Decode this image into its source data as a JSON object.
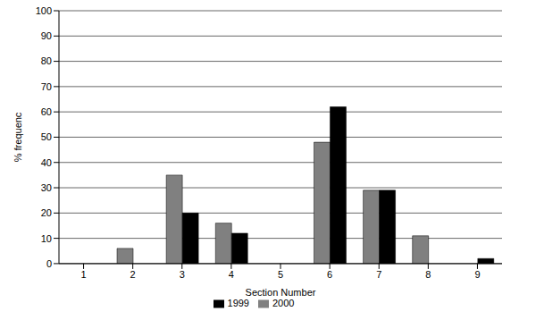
{
  "chart_data": {
    "type": "bar",
    "x_label": "Section Number",
    "y_label": "% frequenc",
    "categories": [
      "1",
      "2",
      "3",
      "4",
      "5",
      "6",
      "7",
      "8",
      "9"
    ],
    "series": [
      {
        "name": "2000",
        "color": "#808080",
        "values": [
          0,
          6,
          35,
          16,
          0,
          48,
          29,
          11,
          0
        ]
      },
      {
        "name": "1999",
        "color": "#000000",
        "values": [
          0,
          0,
          20,
          12,
          0,
          62,
          29,
          0,
          2
        ]
      }
    ],
    "ylim": [
      0,
      100
    ],
    "yticks": [
      0,
      10,
      20,
      30,
      40,
      50,
      60,
      70,
      80,
      90,
      100
    ],
    "grid": true,
    "legend": "bottom"
  }
}
